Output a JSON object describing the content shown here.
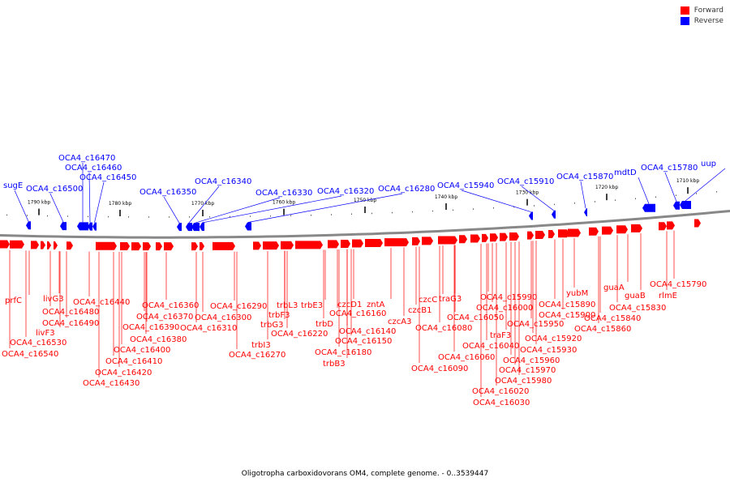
{
  "legend": {
    "forward": {
      "label": "Forward",
      "color": "#ff0000"
    },
    "reverse": {
      "label": "Reverse",
      "color": "#0000ff"
    }
  },
  "caption": "Oligotropha carboxidovorans OM4, complete genome. - 0..3539447",
  "ruler": {
    "ticks": [
      "1790 kbp",
      "1780 kbp",
      "1770 kbp",
      "1760 kbp",
      "1750 kbp",
      "1740 kbp",
      "1730 kbp",
      "1720 kbp",
      "1710 kbp"
    ]
  },
  "reverse_genes": [
    "sugE",
    "OCA4_c16500",
    "OCA4_c16470",
    "OCA4_c16460",
    "OCA4_c16450",
    "OCA4_c16350",
    "OCA4_c16340",
    "OCA4_c16330",
    "OCA4_c16320",
    "OCA4_c16280",
    "OCA4_c15940",
    "OCA4_c15910",
    "OCA4_c15870",
    "mdtD",
    "OCA4_c15780",
    "uup"
  ],
  "forward_genes": [
    "prfC",
    "OCA4_c16530",
    "OCA4_c16540",
    "livF3",
    "livG3",
    "OCA4_c16480",
    "OCA4_c16490",
    "OCA4_c16440",
    "OCA4_c16410",
    "OCA4_c16420",
    "OCA4_c16430",
    "OCA4_c16400",
    "OCA4_c16390",
    "OCA4_c16380",
    "OCA4_c16370",
    "OCA4_c16360",
    "OCA4_c16310",
    "OCA4_c16300",
    "OCA4_c16290",
    "trbI3",
    "OCA4_c16270",
    "trbG3",
    "trbF3",
    "trbL3",
    "trbE3",
    "OCA4_c16220",
    "trbD",
    "trbB3",
    "czcD1",
    "OCA4_c16160",
    "OCA4_c16180",
    "OCA4_c16150",
    "OCA4_c16140",
    "zntA",
    "czcA3",
    "czcB1",
    "czcC",
    "traG3",
    "OCA4_c16090",
    "OCA4_c16080",
    "OCA4_c16060",
    "OCA4_c16050",
    "OCA4_c16040",
    "traF3",
    "OCA4_c16030",
    "OCA4_c16020",
    "OCA4_c16000",
    "OCA4_c15990",
    "OCA4_c15980",
    "OCA4_c15970",
    "OCA4_c15960",
    "OCA4_c15950",
    "OCA4_c15930",
    "OCA4_c15920",
    "OCA4_c15900",
    "OCA4_c15890",
    "yubM",
    "OCA4_c15860",
    "OCA4_c15840",
    "OCA4_c15830",
    "guaA",
    "guaB",
    "rlmE",
    "OCA4_c15790"
  ]
}
